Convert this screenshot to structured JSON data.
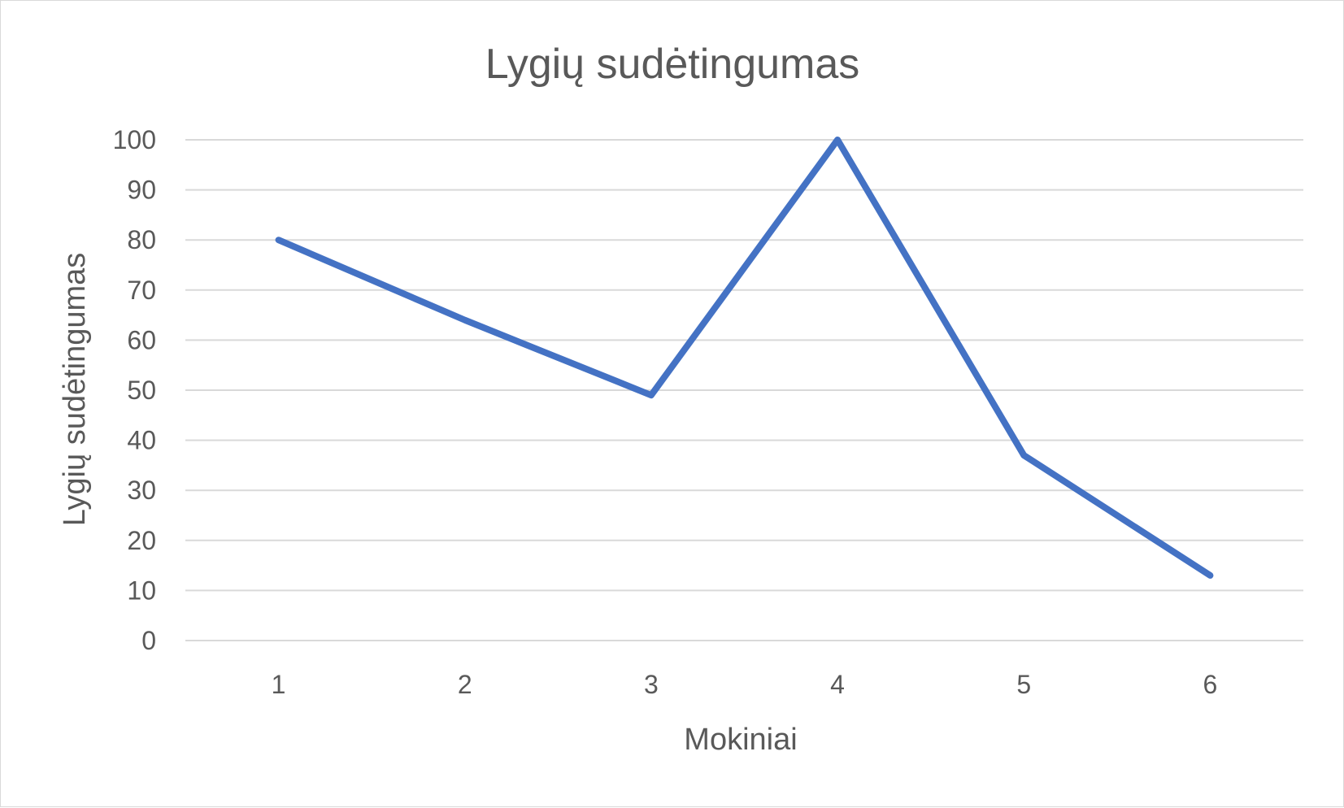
{
  "chart_data": {
    "type": "line",
    "title": "Lygių sudėtingumas",
    "xlabel": "Mokiniai",
    "ylabel": "Lygių sudėtingumas",
    "categories": [
      "1",
      "2",
      "3",
      "4",
      "5",
      "6"
    ],
    "series": [
      {
        "values": [
          80,
          64,
          49,
          100,
          37,
          13
        ]
      }
    ],
    "ylim": [
      0,
      100
    ],
    "yticks": [
      "0",
      "10",
      "20",
      "30",
      "40",
      "50",
      "60",
      "70",
      "80",
      "90",
      "100"
    ],
    "grid": true,
    "legend": "none",
    "colors": {
      "series": "#4472c4",
      "grid": "#d9d9d9",
      "text": "#595959"
    }
  }
}
